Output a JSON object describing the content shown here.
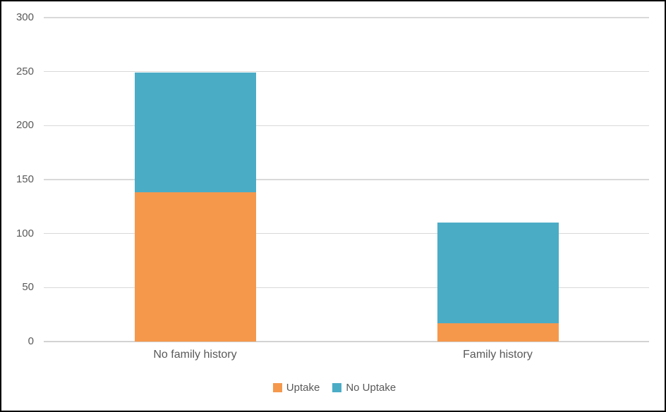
{
  "chart_data": {
    "type": "bar",
    "stacked": true,
    "title": "",
    "xlabel": "",
    "ylabel": "",
    "categories": [
      "No family history",
      "Family history"
    ],
    "series": [
      {
        "name": "Uptake",
        "color": "#F5984C",
        "values": [
          138,
          17
        ]
      },
      {
        "name": "No Uptake",
        "color": "#4BACC6",
        "values": [
          111,
          93
        ]
      }
    ],
    "ylim": [
      0,
      300
    ],
    "ytick_interval": 50,
    "ytick_labels": [
      "0",
      "50",
      "100",
      "150",
      "200",
      "250",
      "300"
    ],
    "grid": true,
    "legend_position": "bottom"
  },
  "colors": {
    "background": "#FFFFFF",
    "border": "#000000",
    "gridline": "#D9D9D9",
    "axis_line": "#D3D3D3",
    "tick_text": "#595959"
  }
}
